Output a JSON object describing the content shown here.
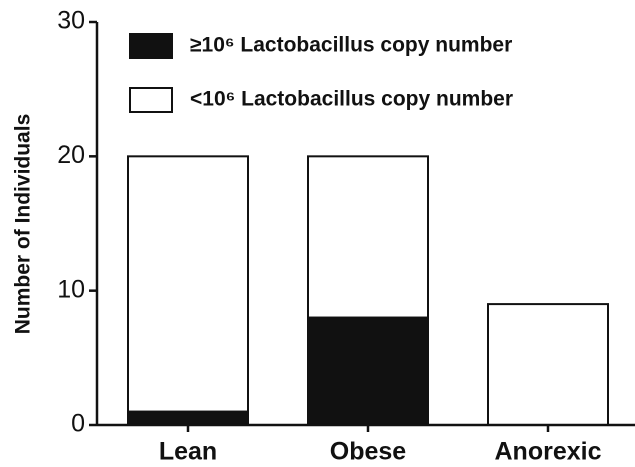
{
  "chart_data": {
    "type": "stacked_bar",
    "y_label": "Number of Individuals",
    "categories": [
      "Lean",
      "Obese",
      "Anorexic"
    ],
    "series": [
      {
        "name": "≥10⁶ Lactobacillus copy number",
        "color": "#111111",
        "values": [
          1,
          8,
          0
        ]
      },
      {
        "name": "<10⁶ Lactobacillus copy number",
        "color": "#ffffff",
        "values": [
          19,
          12,
          9
        ]
      }
    ],
    "ylim": [
      0,
      30
    ],
    "yticks": [
      0,
      10,
      20,
      30
    ],
    "legend": "top-left"
  }
}
